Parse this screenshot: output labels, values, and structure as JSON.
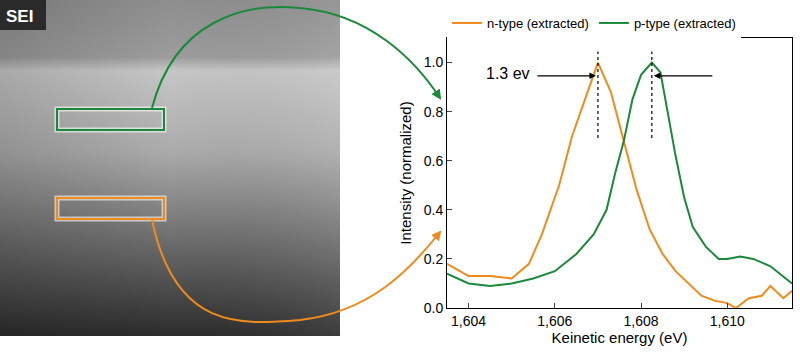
{
  "image": {
    "label": "SEI"
  },
  "chart_data": {
    "type": "line",
    "x_label": "Keinetic energy (eV)",
    "y_label": "Intensity (normalized)",
    "annotation": "1.3 ev",
    "series": [
      {
        "name": "n-type (extracted)",
        "color": "#f08a1c",
        "x": [
          1603.5,
          1604.0,
          1604.5,
          1605.0,
          1605.4,
          1605.7,
          1606.1,
          1606.4,
          1606.7,
          1607.0,
          1607.3,
          1607.6,
          1607.9,
          1608.2,
          1608.5,
          1608.8,
          1609.1,
          1609.4,
          1609.7,
          1610.0,
          1610.2,
          1610.5,
          1610.8,
          1611.0,
          1611.3,
          1611.5
        ],
        "values": [
          0.18,
          0.13,
          0.13,
          0.12,
          0.18,
          0.3,
          0.5,
          0.7,
          0.85,
          1.0,
          0.88,
          0.68,
          0.48,
          0.32,
          0.22,
          0.15,
          0.1,
          0.05,
          0.03,
          0.02,
          0.0,
          0.04,
          0.05,
          0.09,
          0.04,
          0.07
        ]
      },
      {
        "name": "p-type (extracted)",
        "color": "#1a8a3a",
        "x": [
          1603.5,
          1604.0,
          1604.5,
          1605.0,
          1605.5,
          1606.0,
          1606.5,
          1606.9,
          1607.2,
          1607.4,
          1607.6,
          1607.8,
          1608.0,
          1608.25,
          1608.45,
          1608.6,
          1608.8,
          1609.0,
          1609.2,
          1609.5,
          1609.8,
          1610.0,
          1610.3,
          1610.6,
          1611.0,
          1611.5
        ],
        "values": [
          0.14,
          0.1,
          0.09,
          0.1,
          0.12,
          0.15,
          0.22,
          0.3,
          0.4,
          0.55,
          0.68,
          0.85,
          0.95,
          1.0,
          0.96,
          0.82,
          0.62,
          0.45,
          0.33,
          0.25,
          0.2,
          0.2,
          0.21,
          0.2,
          0.17,
          0.1
        ]
      }
    ],
    "xlim": [
      1603.5,
      1611.5
    ],
    "ylim": [
      0,
      1.1
    ],
    "xticks": [
      {
        "value": 1604,
        "label": "1,604"
      },
      {
        "value": 1606,
        "label": "1,606"
      },
      {
        "value": 1608,
        "label": "1,608"
      },
      {
        "value": 1610,
        "label": "1,610"
      }
    ],
    "yticks": [
      {
        "value": 0,
        "label": "0.0"
      },
      0.2,
      0.4,
      0.6,
      0.8,
      {
        "value": 1,
        "label": "1.0"
      }
    ],
    "grid": false,
    "legend": "top"
  }
}
